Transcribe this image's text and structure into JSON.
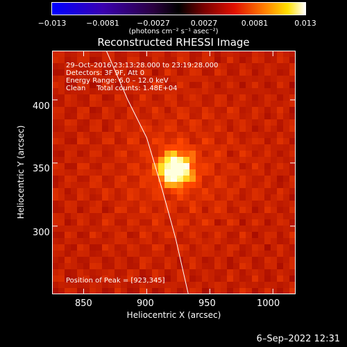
{
  "colorbar": {
    "ticks": [
      "−0.013",
      "−0.0081",
      "−0.0027",
      "0.0027",
      "0.0081",
      "0.013"
    ],
    "unit_label": "(photons cm⁻² s⁻¹ asec⁻²)"
  },
  "plot": {
    "title": "Reconstructed RHESSI Image",
    "info_line1": "29–Oct–2016 23:13:28.000 to 23:19:28.000",
    "info_line2": "Detectors: 3F 9F, Att 0",
    "info_line3": "Energy Range: 6.0 – 12.0 keV",
    "info_line4": "Clean     Total counts: 1.48E+04",
    "peak_label": "Position of Peak = [923,345]",
    "footer_stamp": "6–Sep–2022 12:31"
  },
  "chart_data": {
    "type": "heatmap",
    "title": "Reconstructed RHESSI Image",
    "xlabel": "Heliocentric X (arcsec)",
    "ylabel": "Heliocentric Y (arcsec)",
    "xlim": [
      825,
      1018
    ],
    "ylim": [
      246,
      439
    ],
    "x_ticks": [
      850,
      900,
      950,
      1000
    ],
    "y_ticks": [
      300,
      350,
      400
    ],
    "x_tick_labels": [
      "850",
      "900",
      "950",
      "1000"
    ],
    "y_tick_labels": [
      "300",
      "350",
      "400"
    ],
    "colorbar_range": [
      -0.013,
      0.013
    ],
    "colormap": "hot",
    "peak_position": [
      923,
      345
    ],
    "limb_curve": [
      [
        868,
        439
      ],
      [
        885,
        400
      ],
      [
        900,
        370
      ],
      [
        912,
        330
      ],
      [
        923,
        290
      ],
      [
        933,
        246
      ]
    ],
    "colors": {
      "limb": "#ffffff",
      "background": "#000000"
    }
  }
}
